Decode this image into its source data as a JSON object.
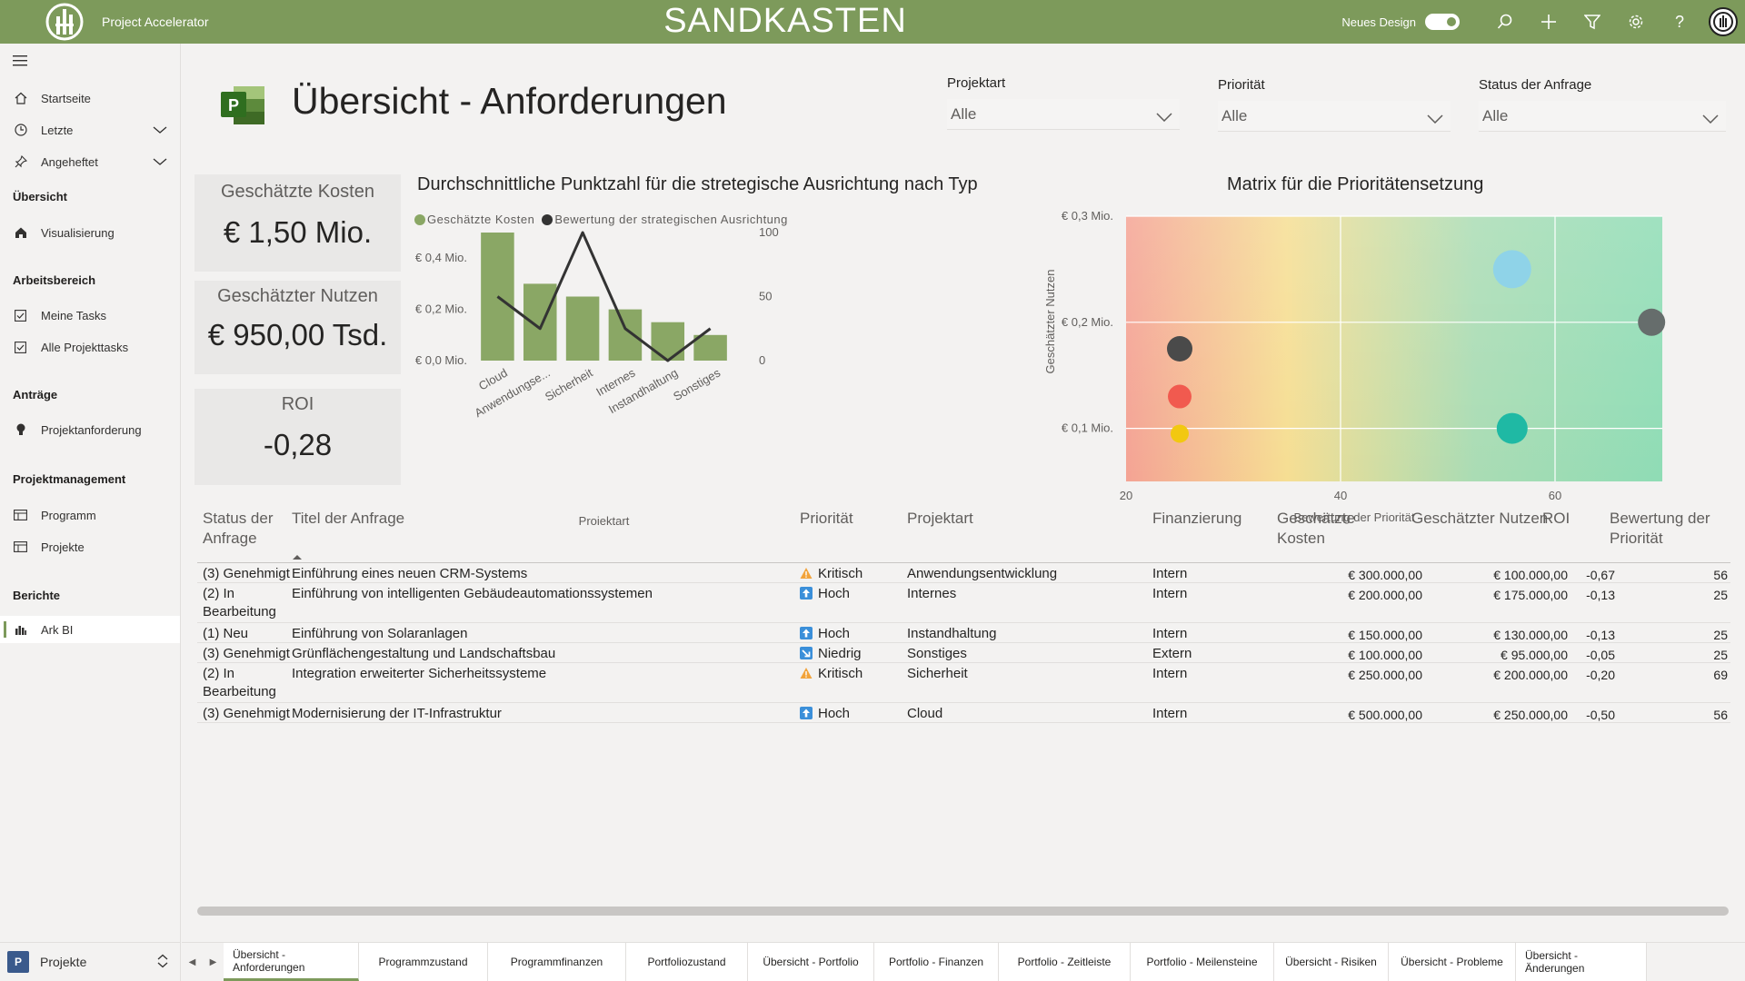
{
  "header": {
    "app_title": "Project Accelerator",
    "env_label": "SANDKASTEN",
    "new_design_label": "Neues Design",
    "colors": {
      "brand": "#7d9a5b"
    }
  },
  "sidebar": {
    "items": [
      {
        "label": "Startseite",
        "icon": "home-icon"
      },
      {
        "label": "Letzte",
        "icon": "clock-icon"
      },
      {
        "label": "Angeheftet",
        "icon": "pin-icon"
      }
    ],
    "sections": [
      {
        "heading": "Übersicht",
        "items": [
          {
            "label": "Visualisierung",
            "icon": "home-filled-icon"
          }
        ]
      },
      {
        "heading": "Arbeitsbereich",
        "items": [
          {
            "label": "Meine Tasks",
            "icon": "checkbox-icon"
          },
          {
            "label": "Alle Projekttasks",
            "icon": "checkbox-icon"
          }
        ]
      },
      {
        "heading": "Anträge",
        "items": [
          {
            "label": "Projektanforderung",
            "icon": "lightbulb-icon"
          }
        ]
      },
      {
        "heading": "Projektmanagement",
        "items": [
          {
            "label": "Programm",
            "icon": "grid-icon"
          },
          {
            "label": "Projekte",
            "icon": "grid-icon"
          }
        ]
      },
      {
        "heading": "Berichte",
        "items": [
          {
            "label": "Ark BI",
            "icon": "bar-chart-icon"
          }
        ]
      }
    ],
    "bottom": {
      "badge": "P",
      "label": "Projekte"
    }
  },
  "page": {
    "title": "Übersicht - Anforderungen"
  },
  "filters": [
    {
      "label": "Projektart",
      "value": "Alle"
    },
    {
      "label": "Priorität",
      "value": "Alle"
    },
    {
      "label": "Status der Anfrage",
      "value": "Alle"
    }
  ],
  "kpis": [
    {
      "label": "Geschätzte Kosten",
      "value": "€ 1,50 Mio."
    },
    {
      "label": "Geschätzter Nutzen",
      "value": "€ 950,00 Tsd."
    },
    {
      "label": "ROI",
      "value": "-0,28"
    }
  ],
  "chart_data": [
    {
      "type": "bar",
      "title": "Durchschnittliche Punktzahl für die stretegische Ausrichtung nach Typ",
      "categories": [
        "Cloud",
        "Anwendungse...",
        "Sicherheit",
        "Internes",
        "Instandhaltung",
        "Sonstiges"
      ],
      "series": [
        {
          "name": "Geschätzte Kosten",
          "type": "bar",
          "axis": "left",
          "values": [
            0.5,
            0.3,
            0.25,
            0.2,
            0.15,
            0.1
          ],
          "color": "#8aa765"
        },
        {
          "name": "Bewertung der strategischen Ausrichtung",
          "type": "line",
          "axis": "right",
          "values": [
            50,
            25,
            100,
            25,
            0,
            25
          ],
          "color": "#333333"
        }
      ],
      "xlabel": "Projektart",
      "ylabel_left": "",
      "yticks_left": [
        "€ 0,0 Mio.",
        "€ 0,2 Mio.",
        "€ 0,4 Mio."
      ],
      "ylim_left": [
        0,
        0.5
      ],
      "yticks_right": [
        "0",
        "50",
        "100"
      ],
      "ylim_right": [
        0,
        100
      ]
    },
    {
      "type": "scatter",
      "title": "Matrix für die Prioritätensetzung",
      "xlabel": "Bewertung der Priorität",
      "ylabel": "Geschätzter Nutzen",
      "xticks": [
        "20",
        "40",
        "60"
      ],
      "xlim": [
        20,
        70
      ],
      "yticks": [
        "€ 0,1 Mio.",
        "€ 0,2 Mio.",
        "€ 0,3 Mio."
      ],
      "ylim": [
        0.05,
        0.3
      ],
      "points": [
        {
          "x": 25,
          "y": 0.175,
          "color": "#4a4a4a",
          "size": 14
        },
        {
          "x": 25,
          "y": 0.13,
          "color": "#f15a4f",
          "size": 13
        },
        {
          "x": 25,
          "y": 0.095,
          "color": "#f2c811",
          "size": 10
        },
        {
          "x": 56,
          "y": 0.25,
          "color": "#8fd3e8",
          "size": 21
        },
        {
          "x": 56,
          "y": 0.1,
          "color": "#1fb9a4",
          "size": 17
        },
        {
          "x": 69,
          "y": 0.2,
          "color": "#666d6c",
          "size": 15
        }
      ]
    }
  ],
  "table": {
    "columns": [
      "Status der Anfrage",
      "Titel der Anfrage",
      "Priorität",
      "Projektart",
      "Finanzierung",
      "Geschätzte Kosten",
      "Geschätzter Nutzen",
      "ROI",
      "Bewertung der Priorität"
    ],
    "rows": [
      {
        "status": "(3) Genehmigt",
        "title": "Einführung eines neuen CRM-Systems",
        "prio": "Kritisch",
        "prio_icon": "warning-icon",
        "type": "Anwendungsentwicklung",
        "fin": "Intern",
        "cost": "€ 300.000,00",
        "benefit": "€ 100.000,00",
        "roi": "-0,67",
        "score": "56"
      },
      {
        "status": "(2) In Bearbeitung",
        "title": "Einführung von intelligenten Gebäudeautomationssystemen",
        "prio": "Hoch",
        "prio_icon": "arrow-up-icon",
        "type": "Internes",
        "fin": "Intern",
        "cost": "€ 200.000,00",
        "benefit": "€ 175.000,00",
        "roi": "-0,13",
        "score": "25"
      },
      {
        "status": "(1) Neu",
        "title": "Einführung von Solaranlagen",
        "prio": "Hoch",
        "prio_icon": "arrow-up-icon",
        "type": "Instandhaltung",
        "fin": "Intern",
        "cost": "€ 150.000,00",
        "benefit": "€ 130.000,00",
        "roi": "-0,13",
        "score": "25"
      },
      {
        "status": "(3) Genehmigt",
        "title": "Grünflächengestaltung und Landschaftsbau",
        "prio": "Niedrig",
        "prio_icon": "arrow-down-icon",
        "type": "Sonstiges",
        "fin": "Extern",
        "cost": "€ 100.000,00",
        "benefit": "€ 95.000,00",
        "roi": "-0,05",
        "score": "25"
      },
      {
        "status": "(2) In Bearbeitung",
        "title": "Integration erweiterter Sicherheitssysteme",
        "prio": "Kritisch",
        "prio_icon": "warning-icon",
        "type": "Sicherheit",
        "fin": "Intern",
        "cost": "€ 250.000,00",
        "benefit": "€ 200.000,00",
        "roi": "-0,20",
        "score": "69"
      },
      {
        "status": "(3) Genehmigt",
        "title": "Modernisierung der IT-Infrastruktur",
        "prio": "Hoch",
        "prio_icon": "arrow-up-icon",
        "type": "Cloud",
        "fin": "Intern",
        "cost": "€ 500.000,00",
        "benefit": "€ 250.000,00",
        "roi": "-0,50",
        "score": "56"
      }
    ]
  },
  "tabs": [
    {
      "label": "Übersicht - Anforderungen",
      "active": true
    },
    {
      "label": "Programmzustand"
    },
    {
      "label": "Programmfinanzen"
    },
    {
      "label": "Portfoliozustand"
    },
    {
      "label": "Übersicht - Portfolio"
    },
    {
      "label": "Portfolio - Finanzen"
    },
    {
      "label": "Portfolio - Zeitleiste"
    },
    {
      "label": "Portfolio - Meilensteine"
    },
    {
      "label": "Übersicht - Risiken"
    },
    {
      "label": "Übersicht - Probleme"
    },
    {
      "label": "Übersicht - Änderungen"
    }
  ]
}
